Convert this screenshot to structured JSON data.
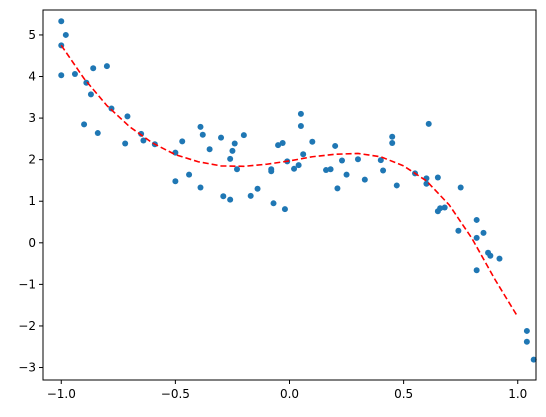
{
  "chart_data": {
    "type": "scatter",
    "title": "",
    "xlabel": "",
    "ylabel": "",
    "xlim": [
      -1.08,
      1.08
    ],
    "ylim": [
      -3.3,
      5.6
    ],
    "grid": false,
    "x_ticks": [
      -1.0,
      -0.5,
      0.0,
      0.5,
      1.0
    ],
    "x_tick_labels": [
      "−1.0",
      "−0.5",
      "0.0",
      "0.5",
      "1.0"
    ],
    "y_ticks": [
      -3,
      -2,
      -1,
      0,
      1,
      2,
      3,
      4,
      5
    ],
    "y_tick_labels": [
      "−3",
      "−2",
      "−1",
      "0",
      "1",
      "2",
      "3",
      "4",
      "5"
    ],
    "series": [
      {
        "kind": "scatter",
        "color": "#1f77b4",
        "marker": "circle",
        "points": [
          [
            -1.0,
            5.33
          ],
          [
            -1.0,
            4.75
          ],
          [
            -0.98,
            5.0
          ],
          [
            -1.0,
            4.03
          ],
          [
            -0.94,
            4.06
          ],
          [
            -0.89,
            3.85
          ],
          [
            -0.86,
            4.2
          ],
          [
            -0.8,
            4.25
          ],
          [
            -0.87,
            3.57
          ],
          [
            -0.78,
            3.23
          ],
          [
            -0.9,
            2.85
          ],
          [
            -0.84,
            2.64
          ],
          [
            -0.71,
            3.04
          ],
          [
            -0.72,
            2.39
          ],
          [
            -0.64,
            2.46
          ],
          [
            -0.65,
            2.62
          ],
          [
            -0.59,
            2.37
          ],
          [
            -0.5,
            2.17
          ],
          [
            -0.47,
            2.44
          ],
          [
            -0.39,
            2.79
          ],
          [
            -0.38,
            2.6
          ],
          [
            -0.3,
            2.53
          ],
          [
            -0.35,
            2.25
          ],
          [
            -0.2,
            2.59
          ],
          [
            -0.24,
            2.39
          ],
          [
            -0.25,
            2.21
          ],
          [
            -0.26,
            2.02
          ],
          [
            -0.23,
            1.77
          ],
          [
            -0.44,
            1.64
          ],
          [
            -0.5,
            1.48
          ],
          [
            -0.39,
            1.33
          ],
          [
            -0.17,
            1.13
          ],
          [
            -0.14,
            1.3
          ],
          [
            -0.29,
            1.12
          ],
          [
            -0.26,
            1.04
          ],
          [
            -0.08,
            1.77
          ],
          [
            -0.08,
            1.72
          ],
          [
            -0.05,
            2.35
          ],
          [
            -0.03,
            2.4
          ],
          [
            -0.01,
            1.96
          ],
          [
            0.02,
            1.78
          ],
          [
            0.04,
            1.87
          ],
          [
            0.06,
            2.13
          ],
          [
            0.05,
            2.81
          ],
          [
            0.05,
            3.1
          ],
          [
            0.1,
            2.43
          ],
          [
            0.16,
            1.75
          ],
          [
            0.18,
            1.77
          ],
          [
            0.2,
            2.33
          ],
          [
            0.21,
            1.31
          ],
          [
            0.23,
            1.98
          ],
          [
            0.25,
            1.64
          ],
          [
            0.3,
            2.01
          ],
          [
            0.33,
            1.52
          ],
          [
            -0.02,
            0.81
          ],
          [
            -0.07,
            0.95
          ],
          [
            0.4,
            1.99
          ],
          [
            0.41,
            1.74
          ],
          [
            0.45,
            2.55
          ],
          [
            0.45,
            2.4
          ],
          [
            0.47,
            1.38
          ],
          [
            0.55,
            1.67
          ],
          [
            0.6,
            1.55
          ],
          [
            0.6,
            1.42
          ],
          [
            0.61,
            2.86
          ],
          [
            0.65,
            1.57
          ],
          [
            0.65,
            0.76
          ],
          [
            0.66,
            0.83
          ],
          [
            0.68,
            0.85
          ],
          [
            0.75,
            1.33
          ],
          [
            0.74,
            0.29
          ],
          [
            0.82,
            0.55
          ],
          [
            0.82,
            0.12
          ],
          [
            0.85,
            0.24
          ],
          [
            0.82,
            -0.66
          ],
          [
            0.87,
            -0.24
          ],
          [
            0.88,
            -0.31
          ],
          [
            0.92,
            -0.38
          ],
          [
            1.04,
            -2.12
          ],
          [
            1.04,
            -2.38
          ],
          [
            1.07,
            -2.81
          ]
        ]
      },
      {
        "kind": "line",
        "color": "#ff0000",
        "style": "dashed",
        "x": [
          -1.0,
          -0.9,
          -0.8,
          -0.7,
          -0.6,
          -0.5,
          -0.4,
          -0.3,
          -0.2,
          -0.1,
          0.0,
          0.1,
          0.2,
          0.3,
          0.4,
          0.5,
          0.6,
          0.7,
          0.8,
          0.9,
          1.0
        ],
        "y": [
          4.75,
          3.95,
          3.3,
          2.79,
          2.4,
          2.12,
          1.95,
          1.85,
          1.84,
          1.89,
          1.97,
          2.07,
          2.13,
          2.15,
          2.07,
          1.85,
          1.49,
          0.91,
          0.1,
          -0.88,
          -1.78
        ]
      }
    ]
  }
}
